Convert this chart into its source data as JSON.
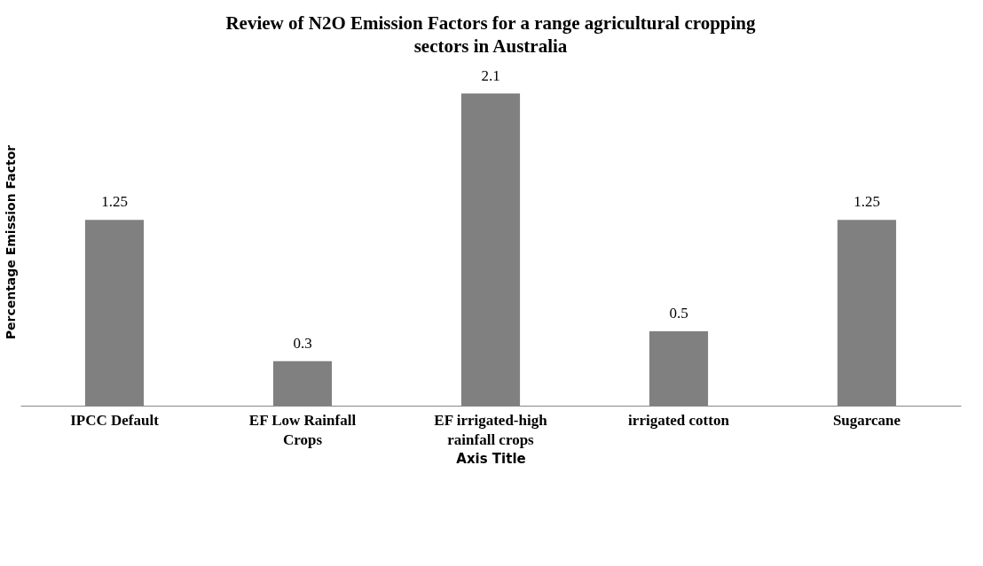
{
  "chart_data": {
    "type": "bar",
    "title": "Review of N2O Emission Factors for a range agricultural cropping sectors in Australia",
    "xlabel": "Axis Title",
    "ylabel": "Percentage Emission Factor",
    "categories": [
      "IPCC Default",
      "EF Low Rainfall Crops",
      "EF irrigated-high rainfall crops",
      "irrigated cotton",
      "Sugarcane"
    ],
    "values": [
      1.25,
      0.3,
      2.1,
      0.5,
      1.25
    ],
    "color": "#808080",
    "data_labels": true,
    "grid": false
  }
}
